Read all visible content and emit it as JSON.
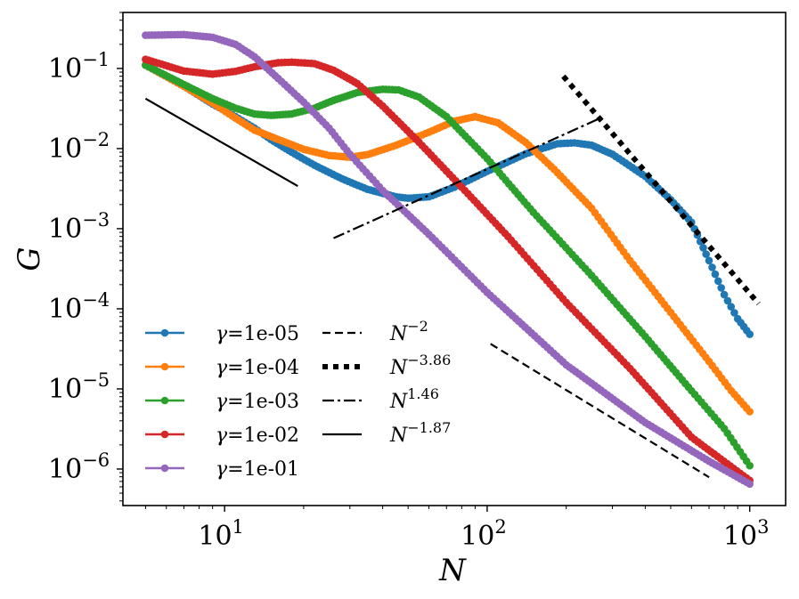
{
  "chart_data": {
    "type": "line",
    "xscale": "log",
    "yscale": "log",
    "xlabel": "N",
    "ylabel": "G",
    "xlim": [
      4.1,
      1370
    ],
    "ylim": [
      3.5e-07,
      0.5
    ],
    "x_ticks": [
      {
        "value": 10,
        "base": "10",
        "exp": "1"
      },
      {
        "value": 100,
        "base": "10",
        "exp": "2"
      },
      {
        "value": 1000,
        "base": "10",
        "exp": "3"
      }
    ],
    "y_ticks": [
      {
        "value": 1e-06,
        "base": "10",
        "exp": "−6"
      },
      {
        "value": 1e-05,
        "base": "10",
        "exp": "−5"
      },
      {
        "value": 0.0001,
        "base": "10",
        "exp": "−4"
      },
      {
        "value": 0.001,
        "base": "10",
        "exp": "−3"
      },
      {
        "value": 0.01,
        "base": "10",
        "exp": "−2"
      },
      {
        "value": 0.1,
        "base": "10",
        "exp": "−1"
      }
    ],
    "series": [
      {
        "name": "γ=1e-05",
        "label_sym": "γ",
        "label_val": "=1e-05",
        "color": "#1f77b4",
        "points": [
          [
            5,
            0.11
          ],
          [
            7,
            0.06
          ],
          [
            9,
            0.036
          ],
          [
            11,
            0.025
          ],
          [
            13,
            0.018
          ],
          [
            15,
            0.013
          ],
          [
            18,
            0.009
          ],
          [
            22,
            0.0062
          ],
          [
            28,
            0.0042
          ],
          [
            35,
            0.0031
          ],
          [
            45,
            0.0025
          ],
          [
            50,
            0.0024
          ],
          [
            60,
            0.0025
          ],
          [
            75,
            0.0033
          ],
          [
            100,
            0.0052
          ],
          [
            140,
            0.0086
          ],
          [
            185,
            0.0115
          ],
          [
            215,
            0.0118
          ],
          [
            250,
            0.011
          ],
          [
            300,
            0.0085
          ],
          [
            400,
            0.0045
          ],
          [
            500,
            0.0023
          ],
          [
            600,
            0.0012
          ],
          [
            700,
            0.0004
          ],
          [
            800,
            0.00015
          ],
          [
            900,
            7.5e-05
          ],
          [
            1000,
            4.8e-05
          ]
        ]
      },
      {
        "name": "γ=1e-04",
        "label_sym": "γ",
        "label_val": "=1e-04",
        "color": "#ff7f0e",
        "points": [
          [
            5,
            0.11
          ],
          [
            7,
            0.06
          ],
          [
            9,
            0.037
          ],
          [
            11,
            0.024
          ],
          [
            13,
            0.017
          ],
          [
            16,
            0.013
          ],
          [
            20,
            0.0098
          ],
          [
            25,
            0.0082
          ],
          [
            30,
            0.0078
          ],
          [
            35,
            0.0084
          ],
          [
            45,
            0.011
          ],
          [
            60,
            0.016
          ],
          [
            75,
            0.022
          ],
          [
            90,
            0.025
          ],
          [
            110,
            0.021
          ],
          [
            140,
            0.012
          ],
          [
            180,
            0.0055
          ],
          [
            250,
            0.0018
          ],
          [
            350,
            0.0004
          ],
          [
            500,
            9e-05
          ],
          [
            700,
            2.2e-05
          ],
          [
            850,
            9.5e-06
          ],
          [
            1000,
            5.2e-06
          ]
        ]
      },
      {
        "name": "γ=1e-03",
        "label_sym": "γ",
        "label_val": "=1e-03",
        "color": "#2ca02c",
        "points": [
          [
            5,
            0.11
          ],
          [
            7,
            0.063
          ],
          [
            9,
            0.042
          ],
          [
            11,
            0.032
          ],
          [
            13,
            0.027
          ],
          [
            15,
            0.026
          ],
          [
            18,
            0.027
          ],
          [
            22,
            0.032
          ],
          [
            26,
            0.04
          ],
          [
            32,
            0.05
          ],
          [
            40,
            0.055
          ],
          [
            46,
            0.054
          ],
          [
            55,
            0.044
          ],
          [
            70,
            0.025
          ],
          [
            100,
            0.0075
          ],
          [
            150,
            0.0016
          ],
          [
            250,
            0.00026
          ],
          [
            400,
            4.5e-05
          ],
          [
            600,
            9.5e-06
          ],
          [
            800,
            3.2e-06
          ],
          [
            1000,
            1.1e-06
          ]
        ]
      },
      {
        "name": "γ=1e-02",
        "label_sym": "γ",
        "label_val": "=1e-02",
        "color": "#d62728",
        "points": [
          [
            5,
            0.13
          ],
          [
            7,
            0.093
          ],
          [
            9,
            0.085
          ],
          [
            11,
            0.092
          ],
          [
            13,
            0.105
          ],
          [
            16,
            0.118
          ],
          [
            18,
            0.12
          ],
          [
            22,
            0.115
          ],
          [
            26,
            0.095
          ],
          [
            32,
            0.065
          ],
          [
            40,
            0.034
          ],
          [
            55,
            0.012
          ],
          [
            80,
            0.0033
          ],
          [
            120,
            0.0008
          ],
          [
            200,
            0.00012
          ],
          [
            350,
            1.8e-05
          ],
          [
            600,
            2.5e-06
          ],
          [
            1000,
            7.2e-07
          ]
        ]
      },
      {
        "name": "γ=1e-01",
        "label_sym": "γ",
        "label_val": "=1e-01",
        "color": "#9467bd",
        "points": [
          [
            5,
            0.26
          ],
          [
            7,
            0.265
          ],
          [
            9,
            0.245
          ],
          [
            11,
            0.2
          ],
          [
            13,
            0.14
          ],
          [
            16,
            0.075
          ],
          [
            20,
            0.038
          ],
          [
            25,
            0.018
          ],
          [
            30,
            0.0085
          ],
          [
            40,
            0.003
          ],
          [
            60,
            0.00085
          ],
          [
            100,
            0.00016
          ],
          [
            200,
            2e-05
          ],
          [
            400,
            3.8e-06
          ],
          [
            700,
            1.25e-06
          ],
          [
            1000,
            6.5e-07
          ]
        ]
      }
    ],
    "reference_lines": [
      {
        "name": "N^-2",
        "label": "N",
        "exp": "−2",
        "style": "dashed",
        "points": [
          [
            103,
            3.65e-05
          ],
          [
            700,
            7.9e-07
          ]
        ]
      },
      {
        "name": "N^-3.86",
        "label": "N",
        "exp": "−3.86",
        "style": "dotted",
        "points": [
          [
            195,
            0.08
          ],
          [
            1080,
            0.000116
          ]
        ]
      },
      {
        "name": "N^1.46",
        "label": "N",
        "exp": "1.46",
        "style": "dashdot",
        "points": [
          [
            26,
            0.00076
          ],
          [
            270,
            0.024
          ]
        ]
      },
      {
        "name": "N^-1.87",
        "label": "N",
        "exp": "−1.87",
        "style": "solid",
        "points": [
          [
            5,
            0.042
          ],
          [
            19,
            0.0034
          ]
        ]
      }
    ],
    "legend_position": "lower-left"
  }
}
